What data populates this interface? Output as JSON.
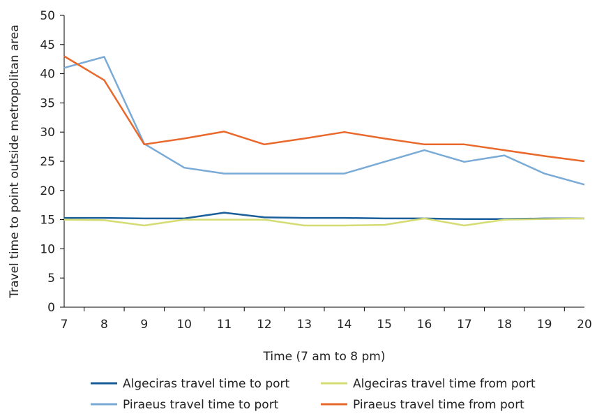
{
  "chart_data": {
    "type": "line",
    "title": "",
    "xlabel": "Time (7 am to 8 pm)",
    "ylabel": "Travel time to point outside metropolitan area",
    "x": [
      7,
      8,
      9,
      10,
      11,
      12,
      13,
      14,
      15,
      16,
      17,
      18,
      19,
      20
    ],
    "xlim": [
      7,
      20
    ],
    "ylim": [
      0,
      50
    ],
    "yticks": [
      0,
      5,
      10,
      15,
      20,
      25,
      30,
      35,
      40,
      45,
      50
    ],
    "grid": false,
    "legend_position": "bottom",
    "series": [
      {
        "name": "Algeciras travel time to port",
        "color": "#1a5e9a",
        "values": [
          15.3,
          15.3,
          15.2,
          15.2,
          16.2,
          15.4,
          15.3,
          15.3,
          15.2,
          15.2,
          15.1,
          15.1,
          15.2,
          15.2
        ]
      },
      {
        "name": "Algeciras travel time from port",
        "color": "#d4dc73",
        "values": [
          15.0,
          14.9,
          14.0,
          15.0,
          15.0,
          15.0,
          14.0,
          14.0,
          14.1,
          15.2,
          14.0,
          15.0,
          15.1,
          15.2
        ]
      },
      {
        "name": "Piraeus travel time to port",
        "color": "#7aaad6",
        "values": [
          41.0,
          42.9,
          28.0,
          23.9,
          22.9,
          22.9,
          22.9,
          22.9,
          24.9,
          26.9,
          24.9,
          26.0,
          22.9,
          21.0
        ]
      },
      {
        "name": "Piraeus travel time from port",
        "color": "#e9692c",
        "values": [
          43.0,
          38.9,
          27.9,
          28.9,
          30.1,
          27.9,
          28.9,
          30.0,
          28.9,
          27.9,
          27.9,
          26.9,
          25.9,
          25.0
        ]
      }
    ]
  }
}
